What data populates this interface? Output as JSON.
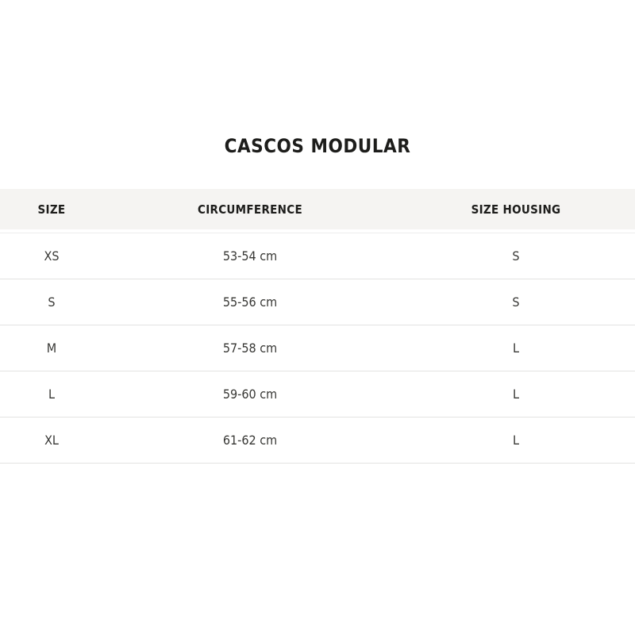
{
  "title": "CASCOS MODULAR",
  "table": {
    "columns": {
      "size": "SIZE",
      "circumference": "CIRCUMFERENCE",
      "housing": "SIZE HOUSING"
    },
    "rows": [
      {
        "size": "XS",
        "circumference": "53-54 cm",
        "housing": "S"
      },
      {
        "size": "S",
        "circumference": "55-56 cm",
        "housing": "S"
      },
      {
        "size": "M",
        "circumference": "57-58 cm",
        "housing": "L"
      },
      {
        "size": "L",
        "circumference": "59-60 cm",
        "housing": "L"
      },
      {
        "size": "XL",
        "circumference": "61-62 cm",
        "housing": "L"
      }
    ]
  },
  "colors": {
    "header_background": "#f5f4f2",
    "row_divider": "#e3e3e1",
    "heading_text": "#1d1d1b",
    "cell_text": "#373734",
    "page_background": "#ffffff"
  }
}
